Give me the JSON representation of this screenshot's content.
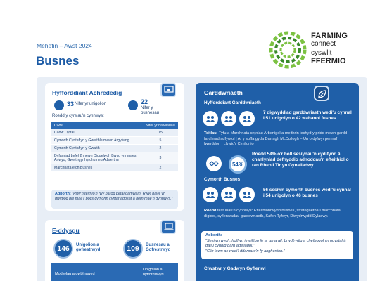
{
  "header": {
    "date_range": "Mehefin – Awst 2024",
    "title": "Busnes"
  },
  "logo": {
    "line1": "FARMING",
    "line2": "connect",
    "line3": "cyswllt",
    "line4": "FFERMIO",
    "colors": {
      "ring_light": "#7cc242",
      "ring_dark": "#3a8a2b"
    }
  },
  "colors": {
    "primary": "#1f5fa8",
    "panel_bg": "#e8eef6",
    "text": "#1d3f6e"
  },
  "accredited_training": {
    "title": "Hyfforddiant Achrededig",
    "stat1_value": "33",
    "stat1_label": "Nifer yr unigolion",
    "stat2_value": "22",
    "stat2_label": "Nifer y busnesau",
    "courses_intro": "Roedd y cyrsiau'n cynnwys:",
    "table_headers": [
      "Cwrs",
      "Nifer yr hawliadau"
    ],
    "rows": [
      {
        "course": "Cadw Llyfrau",
        "count": "15"
      },
      {
        "course": "Cymorth Cyntaf yn y Gweithle mewn Argyfwng",
        "count": "5"
      },
      {
        "course": "Cymorth Cyntaf yn y Gwaith",
        "count": "2"
      },
      {
        "course": "Dyfarniad Lefel 2 mewn Diogelwch Bwyd ym maes Arlwyo, Gweithgynhyrchu neu Adwerthu",
        "count": "3"
      },
      {
        "course": "Marchnata eich Busnes",
        "count": "2"
      }
    ],
    "quote_label": "Adborth:",
    "quote": "\"Rwy'n teimlo'n fwy parod petai damwain. Rwyf nawr yn gwybod ble mae'r bocs cymorth cyntaf agosaf a beth mae'n gynnwys.\""
  },
  "elearning": {
    "title": "E-ddysgu",
    "stat1_value": "146",
    "stat1_label": "Unigolion a gofrestrwyd",
    "stat2_value": "109",
    "stat2_label": "Busnesau a Gofrestrwyd",
    "table_col1": "Modiwlau a gwblhawyd",
    "table_col2": "Unigolion a hyfforddwyd"
  },
  "horticulture": {
    "title": "Garddwriaeth",
    "sub1": "Hyfforddiant Garddwriaeth",
    "stat1": "7 digwyddiad garddwriaeth wedi'u cynnal i 51 unigolyn o 42 wahanol fusnes",
    "topics_label": "Teitlau:",
    "topics": "Tyfu a Marchnata cnydau Arbenigol a meithrin iechyd y pridd mewn gardd farchnad adfywiol | Ar y soffa gyda Darragh McCullogh – Un o dyfwyr pennaf Iwerddon | Llywio'r Cynllunio",
    "percent": "54%",
    "stat2": "Roedd 54% o'r holl sesiynau'n cyd-fynd â chanlyniad defnyddio adnoddau'n effeithiol o ran Rheoli Tir yn Gynaliadwy",
    "sub2": "Cymorth Busnes",
    "stat3": "56 sesiwn cymorth busnes wedi'u cynnal i 54 unigolyn o 46 busnes",
    "topics2_label": "Roedd",
    "topics2": "testunau'n cynnwys: Effeithlonrwydd busnes, strategaethau marchnata digidol, cyflenwadau garddwriaeth, Safon Tyfwyr, Diwydrwydd Dyladwy.",
    "quote_label": "Adborth:",
    "quote": "\"Sesiwn wych, hoffwn i neilltuo fe ar un arall; brwdfrydig a chefnogol yn ogystal â gallu cynnig barn adeiladol.\"",
    "quote2": "\"Cliir iawn ac wedi'i ddarparu'n fy anghenion.\"",
    "bottom": "Clwstwr y Gadwyn Gyflenwi"
  }
}
